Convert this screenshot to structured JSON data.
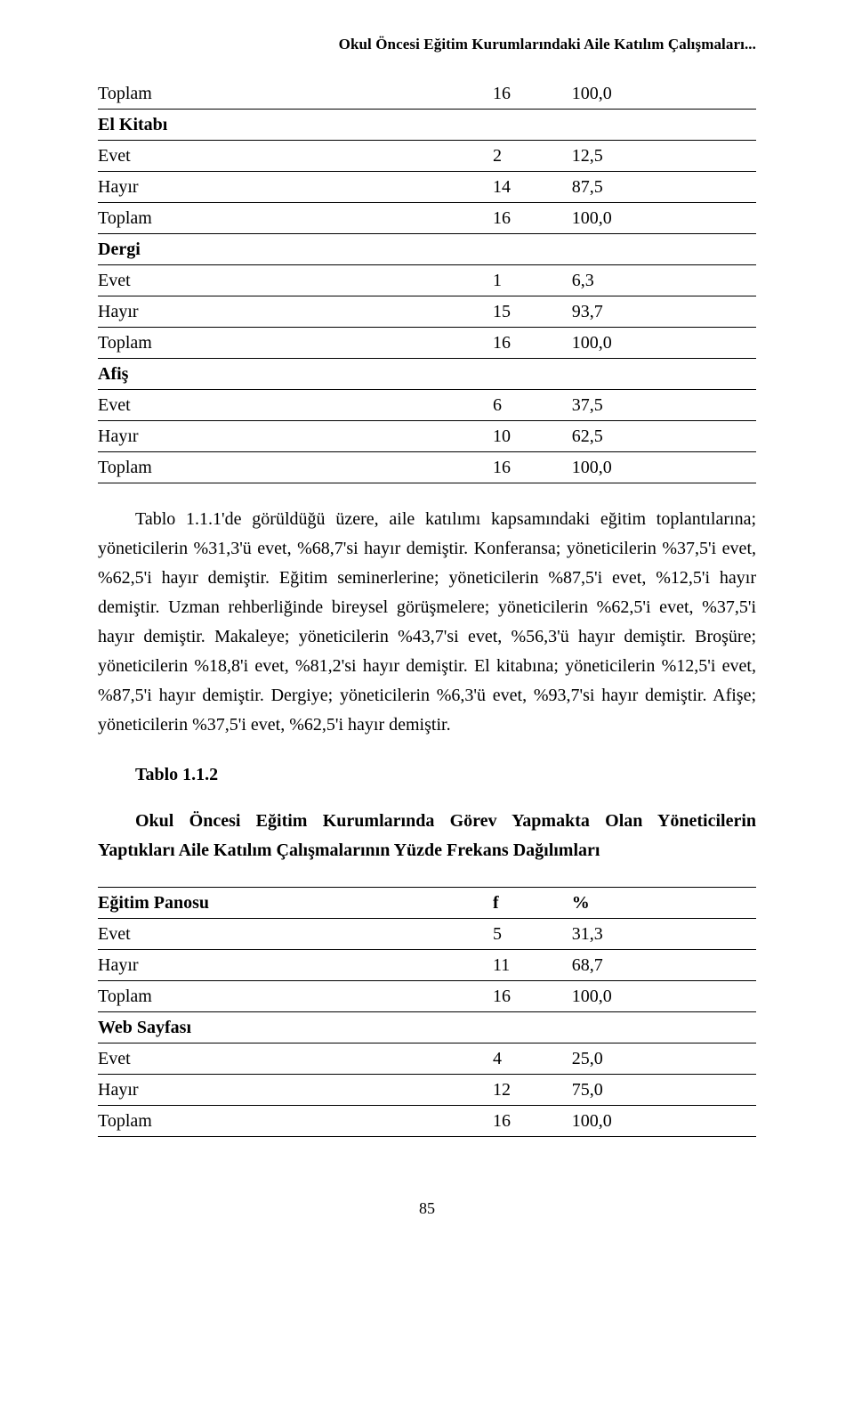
{
  "running_head": "Okul Öncesi Eğitim Kurumlarındaki Aile Katılım Çalışmaları...",
  "table1": {
    "rows": [
      {
        "label": "Toplam",
        "f": "16",
        "pct": "100,0",
        "section": false
      },
      {
        "label": "El Kitabı",
        "f": "",
        "pct": "",
        "section": true
      },
      {
        "label": "Evet",
        "f": "2",
        "pct": "12,5",
        "section": false
      },
      {
        "label": "Hayır",
        "f": "14",
        "pct": "87,5",
        "section": false
      },
      {
        "label": "Toplam",
        "f": "16",
        "pct": "100,0",
        "section": false
      },
      {
        "label": "Dergi",
        "f": "",
        "pct": "",
        "section": true
      },
      {
        "label": "Evet",
        "f": "1",
        "pct": "6,3",
        "section": false
      },
      {
        "label": "Hayır",
        "f": "15",
        "pct": "93,7",
        "section": false
      },
      {
        "label": "Toplam",
        "f": "16",
        "pct": "100,0",
        "section": false
      },
      {
        "label": "Afiş",
        "f": "",
        "pct": "",
        "section": true
      },
      {
        "label": "Evet",
        "f": "6",
        "pct": "37,5",
        "section": false
      },
      {
        "label": "Hayır",
        "f": "10",
        "pct": "62,5",
        "section": false
      },
      {
        "label": "Toplam",
        "f": "16",
        "pct": "100,0",
        "section": false
      }
    ]
  },
  "paragraph1": "Tablo 1.1.1'de görüldüğü üzere, aile katılımı kapsamındaki eğitim toplantılarına; yöneticilerin %31,3'ü evet, %68,7'si hayır demiştir. Konferansa; yöneticilerin %37,5'i evet, %62,5'i hayır demiştir. Eğitim seminerlerine; yöneticilerin %87,5'i evet, %12,5'i hayır demiştir. Uzman rehberliğinde bireysel görüşmelere; yöneticilerin %62,5'i evet, %37,5'i hayır demiştir. Makaleye; yöneticilerin %43,7'si evet, %56,3'ü hayır demiştir. Broşüre; yöneticilerin %18,8'i evet, %81,2'si hayır demiştir. El kitabına; yöneticilerin %12,5'i evet, %87,5'i hayır demiştir. Dergiye; yöneticilerin %6,3'ü evet, %93,7'si hayır demiştir. Afişe; yöneticilerin %37,5'i evet, %62,5'i hayır demiştir.",
  "subhead": "Tablo 1.1.2",
  "subtitle": "Okul Öncesi Eğitim Kurumlarında Görev Yapmakta Olan Yöneticilerin Yaptıkları Aile Katılım Çalışmalarının Yüzde Frekans Dağılımları",
  "table2": {
    "header": {
      "label": "Eğitim Panosu",
      "f": "f",
      "pct": "%"
    },
    "rows": [
      {
        "label": "Evet",
        "f": "5",
        "pct": "31,3",
        "section": false
      },
      {
        "label": "Hayır",
        "f": "11",
        "pct": "68,7",
        "section": false
      },
      {
        "label": "Toplam",
        "f": "16",
        "pct": "100,0",
        "section": false
      },
      {
        "label": "Web Sayfası",
        "f": "",
        "pct": "",
        "section": true
      },
      {
        "label": "Evet",
        "f": "4",
        "pct": "25,0",
        "section": false
      },
      {
        "label": "Hayır",
        "f": "12",
        "pct": "75,0",
        "section": false
      },
      {
        "label": "Toplam",
        "f": "16",
        "pct": "100,0",
        "section": false
      }
    ]
  },
  "page_number": "85",
  "colors": {
    "text": "#000000",
    "background": "#ffffff",
    "rule": "#000000"
  },
  "typography": {
    "body_fontsize_pt": 15,
    "running_head_fontsize_pt": 13,
    "font_family": "Times New Roman"
  }
}
